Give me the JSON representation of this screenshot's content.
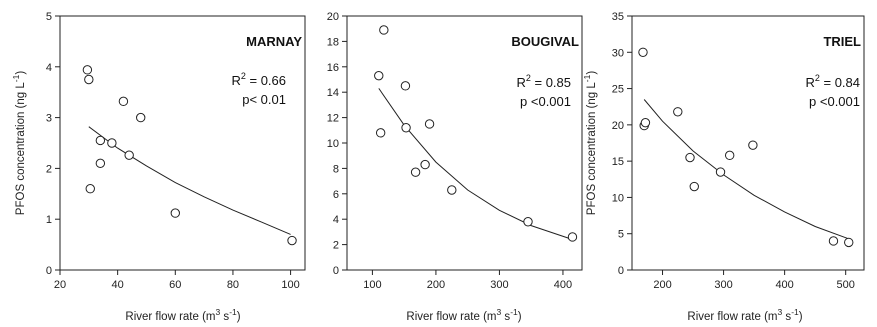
{
  "chart_data": [
    {
      "type": "scatter",
      "title": "MARNAY",
      "stats": {
        "r2_label": "R",
        "r2_sup": "2",
        "r2_value": " = 0.66",
        "p_text": "p< 0.01"
      },
      "xlabel": {
        "main": "River flow rate (m",
        "sup1": "3",
        "mid": " s",
        "sup2": "-1",
        "end": ")"
      },
      "ylabel": {
        "main": "PFOS concentration (ng L",
        "sup": "-1",
        "end": ")"
      },
      "xlim": [
        20,
        105
      ],
      "ylim": [
        0,
        5
      ],
      "xticks": [
        20,
        40,
        60,
        80,
        100
      ],
      "yticks": [
        0,
        1,
        2,
        3,
        4,
        5
      ],
      "points": [
        {
          "x": 29.5,
          "y": 3.94
        },
        {
          "x": 30.0,
          "y": 3.75
        },
        {
          "x": 30.5,
          "y": 1.6
        },
        {
          "x": 34.0,
          "y": 2.55
        },
        {
          "x": 34.0,
          "y": 2.1
        },
        {
          "x": 38.0,
          "y": 2.5
        },
        {
          "x": 42.0,
          "y": 3.32
        },
        {
          "x": 44.0,
          "y": 2.26
        },
        {
          "x": 48.0,
          "y": 3.0
        },
        {
          "x": 60.0,
          "y": 1.12
        },
        {
          "x": 100.5,
          "y": 0.58
        }
      ],
      "fit_curve": [
        {
          "x": 30,
          "y": 2.82
        },
        {
          "x": 40,
          "y": 2.4
        },
        {
          "x": 50,
          "y": 2.05
        },
        {
          "x": 60,
          "y": 1.72
        },
        {
          "x": 70,
          "y": 1.44
        },
        {
          "x": 80,
          "y": 1.18
        },
        {
          "x": 90,
          "y": 0.94
        },
        {
          "x": 100,
          "y": 0.7
        }
      ]
    },
    {
      "type": "scatter",
      "title": "BOUGIVAL",
      "stats": {
        "r2_label": "R",
        "r2_sup": "2",
        "r2_value": " = 0.85",
        "p_text": "p <0.001"
      },
      "xlabel": {
        "main": "River flow rate (m",
        "sup1": "3",
        "mid": " s",
        "sup2": "-1",
        "end": ")"
      },
      "ylabel": {
        "main": "",
        "sup": "",
        "end": ""
      },
      "xlim": [
        60,
        430
      ],
      "ylim": [
        0,
        20
      ],
      "xticks": [
        100,
        200,
        300,
        400
      ],
      "yticks": [
        0,
        2,
        4,
        6,
        8,
        10,
        12,
        14,
        16,
        18,
        20
      ],
      "points": [
        {
          "x": 110,
          "y": 15.3
        },
        {
          "x": 113,
          "y": 10.8
        },
        {
          "x": 118,
          "y": 18.9
        },
        {
          "x": 152,
          "y": 14.5
        },
        {
          "x": 153,
          "y": 11.2
        },
        {
          "x": 168,
          "y": 7.7
        },
        {
          "x": 183,
          "y": 8.3
        },
        {
          "x": 190,
          "y": 11.5
        },
        {
          "x": 225,
          "y": 6.3
        },
        {
          "x": 345,
          "y": 3.8
        },
        {
          "x": 415,
          "y": 2.6
        }
      ],
      "fit_curve": [
        {
          "x": 110,
          "y": 14.3
        },
        {
          "x": 150,
          "y": 11.4
        },
        {
          "x": 200,
          "y": 8.5
        },
        {
          "x": 250,
          "y": 6.3
        },
        {
          "x": 300,
          "y": 4.7
        },
        {
          "x": 350,
          "y": 3.5
        },
        {
          "x": 415,
          "y": 2.4
        }
      ]
    },
    {
      "type": "scatter",
      "title": "TRIEL",
      "stats": {
        "r2_label": "R",
        "r2_sup": "2",
        "r2_value": " = 0.84",
        "p_text": "p <0.001"
      },
      "xlabel": {
        "main": "River flow rate (m",
        "sup1": "3",
        "mid": " s",
        "sup2": "-1",
        "end": ")"
      },
      "ylabel": {
        "main": "PFOS concentration (ng L",
        "sup": "-1",
        "end": ")"
      },
      "xlim": [
        150,
        530
      ],
      "ylim": [
        0,
        35
      ],
      "xticks": [
        200,
        300,
        400,
        500
      ],
      "yticks": [
        0,
        5,
        10,
        15,
        20,
        25,
        30,
        35
      ],
      "points": [
        {
          "x": 168,
          "y": 30.0
        },
        {
          "x": 170,
          "y": 19.9
        },
        {
          "x": 172,
          "y": 20.3
        },
        {
          "x": 225,
          "y": 21.8
        },
        {
          "x": 245,
          "y": 15.5
        },
        {
          "x": 252,
          "y": 11.5
        },
        {
          "x": 295,
          "y": 13.5
        },
        {
          "x": 310,
          "y": 15.8
        },
        {
          "x": 348,
          "y": 17.2
        },
        {
          "x": 480,
          "y": 4.0
        },
        {
          "x": 505,
          "y": 3.8
        }
      ],
      "fit_curve": [
        {
          "x": 170,
          "y": 23.5
        },
        {
          "x": 200,
          "y": 20.5
        },
        {
          "x": 250,
          "y": 16.4
        },
        {
          "x": 300,
          "y": 13.1
        },
        {
          "x": 350,
          "y": 10.3
        },
        {
          "x": 400,
          "y": 8.0
        },
        {
          "x": 450,
          "y": 6.0
        },
        {
          "x": 505,
          "y": 4.3
        }
      ]
    }
  ]
}
